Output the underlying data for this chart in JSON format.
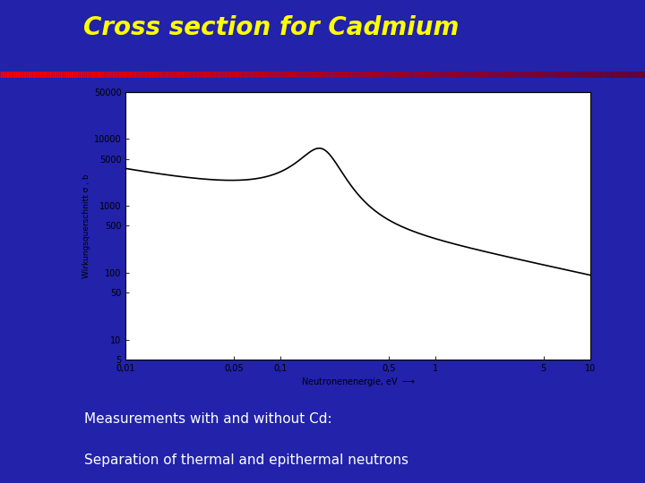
{
  "title": "Cross section for Cadmium",
  "title_color": "#FFFF00",
  "bg_color": "#2222AA",
  "subtitle_line1": "Measurements with and without Cd:",
  "subtitle_line2": "Separation of thermal and epithermal neutrons",
  "subtitle_color": "#FFFFFF",
  "plot_bg": "#FFFFFF",
  "ylabel": "Wirkungsquerschnitt σ , b",
  "xlabel": "Neutronenenergie, eV",
  "curve_color": "#000000",
  "curve_lw": 1.2,
  "yticks": [
    5,
    10,
    50,
    100,
    500,
    1000,
    5000,
    10000,
    50000
  ],
  "ytick_labels": [
    "5",
    "10",
    "50",
    "100",
    "500",
    "1000",
    "5000",
    "10000",
    "50000"
  ],
  "xticks": [
    0.01,
    0.05,
    0.1,
    0.5,
    1,
    5,
    10
  ],
  "xtick_labels": [
    "0,01",
    "0,05",
    "0,1",
    "0,5",
    "1",
    "5",
    "10"
  ],
  "ylim": [
    5,
    50000
  ],
  "xlim": [
    0.01,
    10
  ],
  "title_fontsize": 20,
  "subtitle_fontsize": 11
}
